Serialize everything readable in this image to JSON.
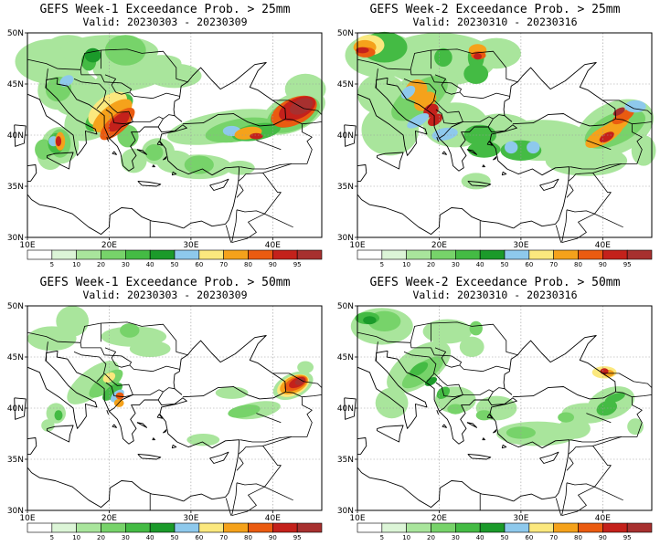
{
  "colorbar": {
    "levels": [
      "5",
      "10",
      "20",
      "30",
      "40",
      "50",
      "60",
      "70",
      "80",
      "90",
      "95"
    ],
    "colors": [
      "#ffffff",
      "#dcf5d7",
      "#a9e59c",
      "#77d36a",
      "#44bb44",
      "#1b9a2a",
      "#8ec9ec",
      "#fbe87e",
      "#f5a21b",
      "#ea5b10",
      "#c4211b",
      "#a7302f"
    ]
  },
  "axes": {
    "lat_labels": [
      "50N",
      "45N",
      "40N",
      "35N",
      "30N"
    ],
    "lon_labels": [
      "10E",
      "20E",
      "30E",
      "40E"
    ]
  },
  "panels": [
    {
      "title": "GEFS Week-1 Exceedance Prob. > 25mm",
      "valid": "Valid: 20230303 - 20230309"
    },
    {
      "title": "GEFS Week-2 Exceedance Prob. > 25mm",
      "valid": "Valid: 20230310 - 20230316"
    },
    {
      "title": "GEFS Week-1 Exceedance Prob. > 50mm",
      "valid": "Valid: 20230303 - 20230309"
    },
    {
      "title": "GEFS Week-2 Exceedance Prob. > 50mm",
      "valid": "Valid: 20230310 - 20230316"
    }
  ]
}
